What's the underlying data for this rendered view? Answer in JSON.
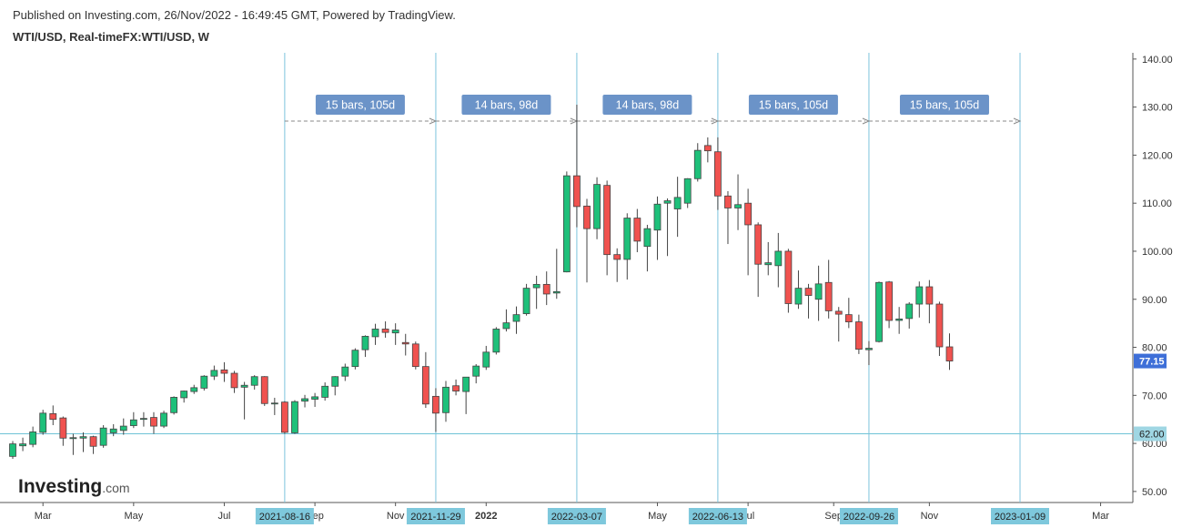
{
  "header": {
    "published": "Published on Investing.com, 26/Nov/2022 - 16:49:45 GMT, Powered by TradingView.",
    "symbol": "WTI/USD, Real-timeFX:WTI/USD, W"
  },
  "logo": {
    "name": "Investing",
    "suffix": ".com"
  },
  "chart_data": {
    "type": "candlestick",
    "open": [
      57.3,
      59.5,
      59.8,
      62.3,
      66.2,
      65.3,
      61.0,
      61.1,
      61.4,
      59.6,
      62.2,
      62.7,
      63.7,
      65.0,
      65.4,
      63.6,
      66.4,
      69.5,
      70.8,
      71.5,
      74.0,
      75.3,
      74.6,
      71.7,
      72.1,
      73.9,
      68.3,
      68.6,
      62.2,
      68.8,
      69.2,
      69.6,
      71.9,
      74.0,
      76.0,
      79.5,
      82.2,
      83.8,
      83.0,
      81.0,
      80.7,
      76.0,
      69.8,
      66.4,
      72.0,
      70.8,
      74.0,
      75.9,
      79.0,
      83.9,
      85.4,
      87.0,
      92.4,
      93.1,
      91.3,
      95.7,
      115.7,
      109.4,
      104.7,
      113.7,
      99.3,
      98.3,
      106.9,
      101.0,
      104.4,
      110.0,
      108.8,
      110.0,
      115.1,
      122.0,
      120.7,
      111.5,
      109.0,
      110.0,
      105.5,
      97.2,
      97.0,
      100.0,
      89.0,
      92.3,
      90.0,
      93.5,
      87.5,
      86.8,
      85.3,
      79.5,
      81.2,
      93.6,
      85.6,
      86.0,
      89.0,
      92.6,
      89.0,
      80.1
    ],
    "high": [
      60.5,
      61.2,
      63.5,
      67.0,
      67.9,
      65.6,
      62.0,
      62.3,
      61.6,
      63.8,
      64.0,
      65.2,
      66.5,
      66.5,
      66.5,
      66.8,
      69.8,
      71.0,
      72.2,
      74.2,
      76.2,
      76.9,
      75.1,
      72.8,
      74.2,
      74.0,
      69.5,
      68.8,
      69.0,
      70.1,
      70.5,
      72.7,
      74.0,
      76.6,
      79.8,
      82.5,
      84.9,
      85.4,
      85.0,
      82.8,
      81.2,
      79.0,
      71.5,
      73.0,
      73.3,
      73.5,
      76.5,
      80.3,
      84.2,
      87.9,
      88.5,
      93.2,
      94.9,
      95.8,
      100.5,
      116.6,
      130.5,
      110.9,
      115.4,
      114.7,
      100.6,
      107.9,
      108.8,
      105.5,
      111.4,
      111.0,
      115.5,
      115.2,
      122.5,
      123.7,
      123.7,
      112.5,
      116.0,
      113.0,
      106.0,
      101.9,
      103.8,
      100.5,
      96.0,
      93.2,
      97.0,
      98.2,
      88.4,
      90.3,
      86.8,
      81.3,
      93.7,
      93.8,
      88.4,
      89.4,
      93.7,
      94.0,
      89.5,
      82.9
    ],
    "low": [
      56.8,
      58.4,
      59.2,
      61.8,
      63.8,
      59.5,
      57.6,
      58.2,
      57.8,
      59.1,
      61.5,
      61.8,
      63.2,
      63.5,
      62.0,
      63.2,
      66.0,
      68.5,
      70.3,
      71.0,
      73.2,
      72.8,
      70.5,
      65.0,
      71.2,
      67.8,
      65.9,
      62.0,
      62.0,
      67.5,
      67.6,
      68.9,
      70.0,
      73.0,
      75.4,
      78.0,
      80.5,
      82.0,
      80.5,
      78.3,
      75.4,
      67.4,
      62.4,
      64.5,
      70.0,
      66.1,
      72.5,
      75.3,
      78.5,
      83.3,
      82.8,
      86.6,
      88.0,
      88.8,
      90.1,
      95.6,
      105.0,
      93.5,
      102.5,
      95.0,
      93.6,
      94.1,
      99.8,
      95.8,
      98.2,
      99.0,
      103.0,
      109.0,
      114.5,
      118.5,
      108.6,
      101.5,
      104.4,
      95.0,
      90.5,
      95.0,
      92.5,
      87.2,
      88.0,
      86.0,
      85.5,
      86.0,
      81.2,
      84.0,
      78.6,
      76.3,
      81.0,
      84.0,
      82.8,
      83.9,
      86.2,
      85.0,
      78.2,
      75.3
    ],
    "close": [
      59.9,
      59.9,
      62.4,
      66.3,
      65.0,
      61.1,
      61.2,
      61.4,
      59.4,
      63.2,
      63.0,
      63.6,
      64.9,
      65.2,
      63.6,
      66.3,
      69.6,
      70.9,
      71.6,
      74.0,
      75.2,
      74.6,
      71.6,
      72.1,
      73.9,
      68.3,
      68.4,
      62.3,
      68.7,
      69.3,
      69.7,
      71.9,
      73.9,
      75.9,
      79.4,
      82.3,
      83.8,
      83.1,
      83.6,
      80.7,
      76.0,
      68.2,
      66.3,
      71.7,
      70.9,
      73.8,
      76.1,
      79.0,
      83.8,
      85.1,
      86.8,
      92.3,
      93.1,
      91.1,
      91.6,
      115.7,
      109.3,
      104.7,
      113.9,
      99.3,
      98.3,
      106.9,
      102.1,
      104.7,
      109.8,
      110.5,
      111.2,
      115.1,
      121.0,
      120.9,
      111.5,
      109.0,
      109.7,
      105.5,
      97.3,
      97.6,
      100.0,
      89.1,
      92.3,
      90.8,
      93.2,
      87.6,
      86.9,
      85.3,
      79.6,
      79.8,
      93.5,
      85.6,
      85.9,
      89.0,
      92.6,
      89.0,
      80.1,
      77.15
    ],
    "up_color": "#1ec07a",
    "down_color": "#f0524f",
    "ylim": [
      47.7,
      141.3
    ],
    "yticks": [
      {
        "value": 50,
        "label": "50.00"
      },
      {
        "value": 60,
        "label": "60.00"
      },
      {
        "value": 70,
        "label": "70.00"
      },
      {
        "value": 80,
        "label": "80.00"
      },
      {
        "value": 90,
        "label": "90.00"
      },
      {
        "value": 100,
        "label": "100.00"
      },
      {
        "value": 110,
        "label": "110.00"
      },
      {
        "value": 120,
        "label": "120.00"
      },
      {
        "value": 130,
        "label": "130.00"
      },
      {
        "value": 140,
        "label": "140.00"
      }
    ],
    "xticks": [
      "Mar",
      "May",
      "Jul",
      "Sep",
      "Nov",
      "2022",
      "May",
      "Jul",
      "Sep",
      "Nov",
      "Mar"
    ],
    "date_markers": [
      "2021-08-16",
      "2021-11-29",
      "2022-03-07",
      "2022-06-13",
      "2022-09-26",
      "2023-01-09"
    ],
    "ranges": [
      "15 bars, 105d",
      "14 bars, 98d",
      "14 bars, 98d",
      "15 bars, 105d",
      "15 bars, 105d"
    ],
    "hline": {
      "value": 62,
      "label": "62.00"
    },
    "last_price": {
      "value": 77.15,
      "label": "77.15"
    }
  }
}
